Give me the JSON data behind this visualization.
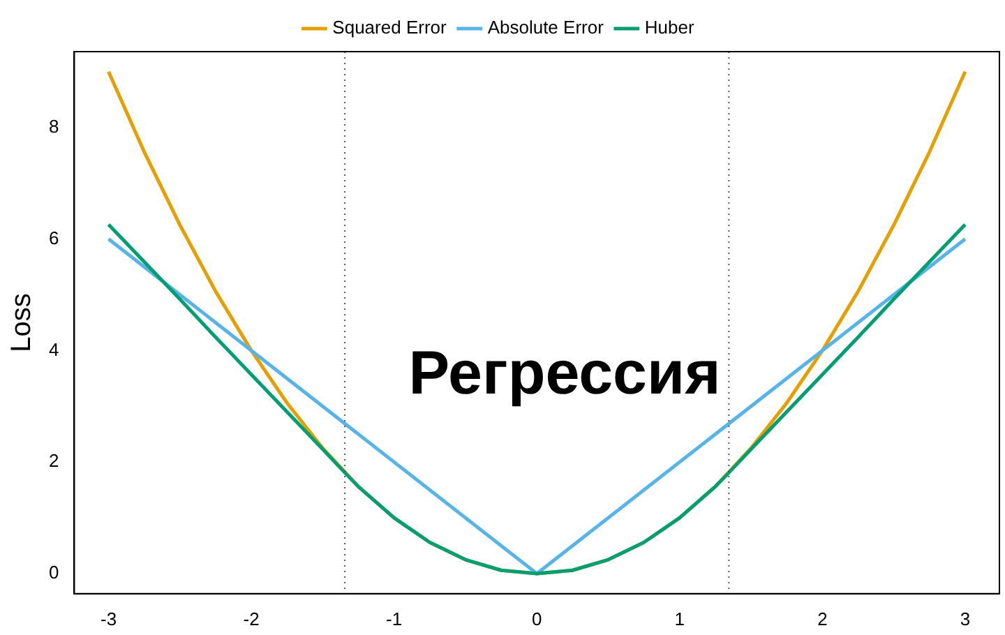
{
  "chart_data": {
    "type": "line",
    "ylabel": "Loss",
    "annotations": [
      "Регрессия"
    ],
    "xlim": [
      -3.24,
      3.24
    ],
    "ylim": [
      -0.36,
      9.36
    ],
    "xticks": [
      -3,
      -2,
      -1,
      0,
      1,
      2,
      3
    ],
    "yticks": [
      0,
      2,
      4,
      6,
      8
    ],
    "grid": false,
    "legend": "top",
    "marker": "none",
    "line_style": "solid",
    "series": [
      {
        "name": "Squared Error",
        "color": "#e69f00",
        "x": [
          -3,
          -2.75,
          -2.5,
          -2.25,
          -2,
          -1.75,
          -1.5,
          -1.25,
          -1,
          -0.75,
          -0.5,
          -0.25,
          0,
          0.25,
          0.5,
          0.75,
          1,
          1.25,
          1.5,
          1.75,
          2,
          2.25,
          2.5,
          2.75,
          3
        ],
        "values": [
          9,
          7.56,
          6.25,
          5.06,
          4,
          3.06,
          2.25,
          1.56,
          1,
          0.56,
          0.25,
          0.06,
          0,
          0.06,
          0.25,
          0.56,
          1,
          1.56,
          2.25,
          3.06,
          4,
          5.06,
          6.25,
          7.56,
          9
        ]
      },
      {
        "name": "Absolute Error",
        "color": "#56b4e9",
        "x": [
          -3,
          0,
          3
        ],
        "values": [
          6,
          0,
          6
        ]
      },
      {
        "name": "Huber",
        "color": "#009e73",
        "x": [
          -3,
          -2.75,
          -2.5,
          -2.25,
          -2,
          -1.75,
          -1.5,
          -1.345,
          -1.25,
          -1,
          -0.75,
          -0.5,
          -0.25,
          0,
          0.25,
          0.5,
          0.75,
          1,
          1.25,
          1.345,
          1.5,
          1.75,
          2,
          2.25,
          2.5,
          2.75,
          3
        ],
        "values": [
          6.26,
          5.59,
          4.92,
          4.24,
          3.57,
          2.9,
          2.23,
          1.81,
          1.56,
          1,
          0.56,
          0.25,
          0.06,
          0,
          0.06,
          0.25,
          0.56,
          1,
          1.56,
          1.81,
          2.23,
          2.9,
          3.57,
          4.24,
          4.92,
          5.59,
          6.26
        ]
      }
    ],
    "ref_lines": [
      {
        "axis": "x",
        "value": -1.345,
        "color": "#555555",
        "line_style": "dotted"
      },
      {
        "axis": "x",
        "value": 1.345,
        "color": "#555555",
        "line_style": "dotted"
      }
    ]
  }
}
